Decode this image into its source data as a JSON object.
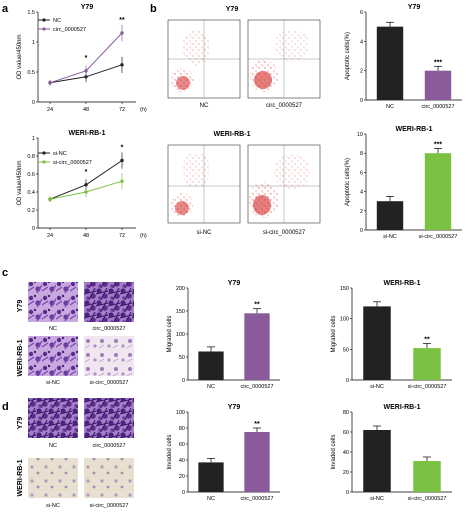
{
  "panel_labels": {
    "a": "a",
    "b": "b",
    "c": "c",
    "d": "d"
  },
  "panel_a": {
    "top": {
      "title": "Y79",
      "ylabel": "OD value/450nm",
      "xunit": "(h)",
      "legend": [
        "NC",
        "circ_0000527"
      ],
      "significance": [
        "*",
        "**"
      ]
    },
    "bottom": {
      "title": "WERI-RB-1",
      "ylabel": "OD value/450nm",
      "xunit": "(h)",
      "legend": [
        "si-NC",
        "si-circ_0000527"
      ],
      "significance": [
        "*",
        "*"
      ]
    }
  },
  "panel_b": {
    "flow_top": {
      "title": "Y79",
      "labels": [
        "NC",
        "circ_0000527"
      ]
    },
    "flow_bottom": {
      "title": "WERI-RB-1",
      "labels": [
        "si-NC",
        "si-circ_0000527"
      ]
    }
  },
  "panel_c": {
    "row_labels": [
      "Y79",
      "WERI-RB-1"
    ],
    "image_labels": [
      "NC",
      "circ_0000527",
      "si-NC",
      "si-circ_0000527"
    ]
  },
  "panel_d": {
    "row_labels": [
      "Y79",
      "WERI-RB-1"
    ],
    "image_labels": [
      "NC",
      "circ_0000527",
      "si-NC",
      "si-circ_0000527"
    ]
  },
  "colors": {
    "nc": "#222222",
    "circ": "#8a5a9a",
    "si_circ": "#7cc242",
    "crystal_violet": "#5b2c8c"
  },
  "chart_data": [
    {
      "id": "a_top",
      "type": "line",
      "title": "Y79",
      "xlabel": "(h)",
      "ylabel": "OD value/450nm",
      "x": [
        24,
        48,
        72
      ],
      "ylim": [
        0,
        1.5
      ],
      "yticks": [
        0,
        0.5,
        1.0,
        1.5
      ],
      "series": [
        {
          "name": "NC",
          "values": [
            0.32,
            0.42,
            0.62
          ]
        },
        {
          "name": "circ_0000527",
          "values": [
            0.32,
            0.52,
            1.15
          ]
        }
      ],
      "annotations": [
        {
          "x": 48,
          "text": "*"
        },
        {
          "x": 72,
          "text": "**"
        }
      ]
    },
    {
      "id": "a_bottom",
      "type": "line",
      "title": "WERI-RB-1",
      "xlabel": "(h)",
      "ylabel": "OD value/450nm",
      "x": [
        24,
        48,
        72
      ],
      "ylim": [
        0,
        1.0
      ],
      "yticks": [
        0,
        0.2,
        0.4,
        0.6,
        0.8,
        1.0
      ],
      "series": [
        {
          "name": "si-NC",
          "values": [
            0.32,
            0.48,
            0.75
          ]
        },
        {
          "name": "si-circ_0000527",
          "values": [
            0.32,
            0.4,
            0.52
          ]
        }
      ],
      "annotations": [
        {
          "x": 48,
          "text": "*"
        },
        {
          "x": 72,
          "text": "*"
        }
      ]
    },
    {
      "id": "b_top",
      "type": "bar",
      "title": "Y79",
      "ylabel": "Apoptotic cells(%)",
      "categories": [
        "NC",
        "circ_0000527"
      ],
      "values": [
        5.0,
        2.0
      ],
      "ylim": [
        0,
        6
      ],
      "yticks": [
        0,
        2,
        4,
        6
      ],
      "annotations": [
        {
          "index": 1,
          "text": "***"
        }
      ]
    },
    {
      "id": "b_bottom",
      "type": "bar",
      "title": "WERI-RB-1",
      "ylabel": "Apoptotic cells(%)",
      "categories": [
        "si-NC",
        "si-circ_0000527"
      ],
      "values": [
        3.0,
        8.0
      ],
      "ylim": [
        0,
        10
      ],
      "yticks": [
        0,
        2,
        4,
        6,
        8,
        10
      ],
      "annotations": [
        {
          "index": 1,
          "text": "***"
        }
      ]
    },
    {
      "id": "c_y79",
      "type": "bar",
      "title": "Y79",
      "ylabel": "Migrated cells",
      "categories": [
        "NC",
        "circ_0000527"
      ],
      "values": [
        62,
        145
      ],
      "ylim": [
        0,
        200
      ],
      "yticks": [
        0,
        50,
        100,
        150,
        200
      ],
      "annotations": [
        {
          "index": 1,
          "text": "**"
        }
      ]
    },
    {
      "id": "c_weri",
      "type": "bar",
      "title": "WERI-RB-1",
      "ylabel": "Migrated cells",
      "categories": [
        "si-NC",
        "si-circ_0000527"
      ],
      "values": [
        120,
        52
      ],
      "ylim": [
        0,
        150
      ],
      "yticks": [
        0,
        50,
        100,
        150
      ],
      "annotations": [
        {
          "index": 1,
          "text": "**"
        }
      ]
    },
    {
      "id": "d_y79",
      "type": "bar",
      "title": "Y79",
      "ylabel": "Invaded cells",
      "categories": [
        "NC",
        "circ_0000527"
      ],
      "values": [
        37,
        75
      ],
      "ylim": [
        0,
        100
      ],
      "yticks": [
        0,
        20,
        40,
        60,
        80,
        100
      ],
      "annotations": [
        {
          "index": 1,
          "text": "**"
        }
      ]
    },
    {
      "id": "d_weri",
      "type": "bar",
      "title": "WERI-RB-1",
      "ylabel": "Invaded cells",
      "categories": [
        "si-NC",
        "si-circ_0000527"
      ],
      "values": [
        62,
        31
      ],
      "ylim": [
        0,
        80
      ],
      "yticks": [
        0,
        20,
        40,
        60,
        80
      ],
      "annotations": []
    }
  ]
}
